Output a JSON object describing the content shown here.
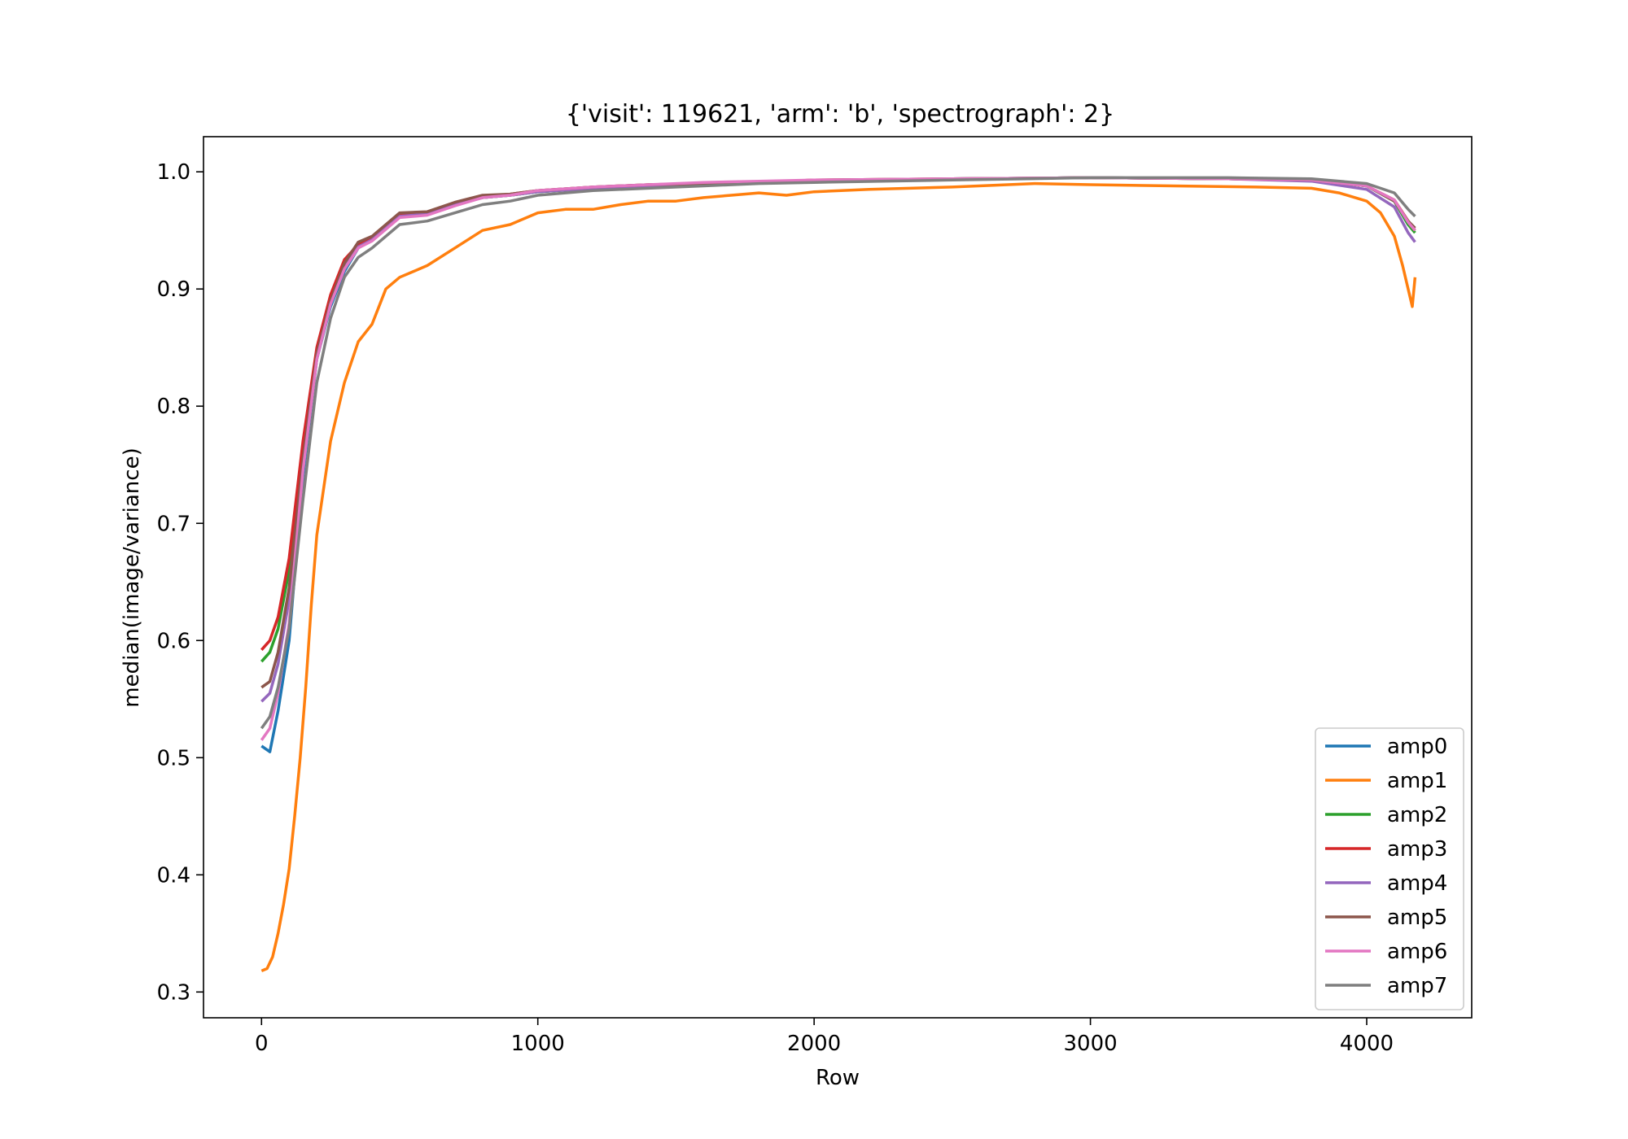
{
  "chart_data": {
    "type": "line",
    "title": "{'visit': 119621, 'arm': 'b', 'spectrograph': 2}",
    "xlabel": "Row",
    "ylabel": "median(image/variance)",
    "xlim": [
      -210,
      4380
    ],
    "ylim": [
      0.278,
      1.03
    ],
    "xticks": [
      0,
      1000,
      2000,
      3000,
      4000
    ],
    "yticks": [
      0.3,
      0.4,
      0.5,
      0.6,
      0.7,
      0.8,
      0.9,
      1.0
    ],
    "xtick_labels": [
      "0",
      "1000",
      "2000",
      "3000",
      "4000"
    ],
    "ytick_labels": [
      "0.3",
      "0.4",
      "0.5",
      "0.6",
      "0.7",
      "0.8",
      "0.9",
      "1.0"
    ],
    "grid": false,
    "legend": "lower-right",
    "series": [
      {
        "name": "amp0",
        "color": "#1f77b4",
        "x": [
          0,
          30,
          60,
          100,
          150,
          200,
          250,
          300,
          350,
          400,
          500,
          600,
          700,
          800,
          900,
          1000,
          1200,
          1400,
          1600,
          1800,
          2000,
          2500,
          3000,
          3500,
          3800,
          4000,
          4100,
          4150,
          4175
        ],
        "y": [
          0.51,
          0.505,
          0.54,
          0.6,
          0.74,
          0.84,
          0.885,
          0.915,
          0.935,
          0.942,
          0.962,
          0.964,
          0.972,
          0.978,
          0.98,
          0.983,
          0.986,
          0.988,
          0.99,
          0.991,
          0.992,
          0.994,
          0.995,
          0.994,
          0.993,
          0.988,
          0.975,
          0.955,
          0.95
        ]
      },
      {
        "name": "amp1",
        "color": "#ff7f0e",
        "x": [
          0,
          20,
          40,
          60,
          80,
          100,
          120,
          140,
          160,
          180,
          200,
          250,
          300,
          350,
          400,
          450,
          500,
          550,
          600,
          700,
          800,
          900,
          1000,
          1100,
          1200,
          1300,
          1400,
          1500,
          1600,
          1700,
          1800,
          1900,
          2000,
          2200,
          2500,
          2800,
          3000,
          3300,
          3600,
          3800,
          3900,
          4000,
          4050,
          4100,
          4130,
          4150,
          4165,
          4175
        ],
        "y": [
          0.318,
          0.32,
          0.33,
          0.35,
          0.375,
          0.405,
          0.45,
          0.5,
          0.56,
          0.63,
          0.69,
          0.77,
          0.82,
          0.855,
          0.87,
          0.9,
          0.91,
          0.915,
          0.92,
          0.935,
          0.95,
          0.955,
          0.965,
          0.968,
          0.968,
          0.972,
          0.975,
          0.975,
          0.978,
          0.98,
          0.982,
          0.98,
          0.983,
          0.985,
          0.987,
          0.99,
          0.989,
          0.988,
          0.987,
          0.986,
          0.982,
          0.975,
          0.965,
          0.945,
          0.92,
          0.9,
          0.885,
          0.91
        ]
      },
      {
        "name": "amp2",
        "color": "#2ca02c",
        "x": [
          0,
          30,
          60,
          100,
          150,
          200,
          250,
          300,
          350,
          400,
          500,
          600,
          700,
          800,
          900,
          1000,
          1200,
          1400,
          1600,
          1800,
          2000,
          2500,
          3000,
          3500,
          3800,
          4000,
          4100,
          4150,
          4175
        ],
        "y": [
          0.582,
          0.59,
          0.61,
          0.66,
          0.76,
          0.845,
          0.89,
          0.92,
          0.937,
          0.943,
          0.962,
          0.964,
          0.972,
          0.978,
          0.98,
          0.983,
          0.986,
          0.988,
          0.99,
          0.991,
          0.992,
          0.994,
          0.995,
          0.994,
          0.993,
          0.988,
          0.975,
          0.955,
          0.948
        ]
      },
      {
        "name": "amp3",
        "color": "#d62728",
        "x": [
          0,
          30,
          60,
          100,
          150,
          200,
          250,
          300,
          350,
          400,
          500,
          600,
          700,
          800,
          900,
          1000,
          1200,
          1400,
          1600,
          1800,
          2000,
          2500,
          3000,
          3500,
          3800,
          4000,
          4100,
          4150,
          4175
        ],
        "y": [
          0.592,
          0.6,
          0.62,
          0.67,
          0.77,
          0.85,
          0.895,
          0.925,
          0.938,
          0.944,
          0.963,
          0.965,
          0.972,
          0.979,
          0.981,
          0.984,
          0.987,
          0.989,
          0.99,
          0.991,
          0.993,
          0.994,
          0.995,
          0.994,
          0.993,
          0.988,
          0.976,
          0.958,
          0.95
        ]
      },
      {
        "name": "amp4",
        "color": "#9467bd",
        "x": [
          0,
          30,
          60,
          100,
          150,
          200,
          250,
          300,
          350,
          400,
          500,
          600,
          700,
          800,
          900,
          1000,
          1200,
          1400,
          1600,
          1800,
          2000,
          2500,
          3000,
          3500,
          3800,
          4000,
          4100,
          4150,
          4175
        ],
        "y": [
          0.548,
          0.555,
          0.58,
          0.635,
          0.75,
          0.84,
          0.888,
          0.918,
          0.936,
          0.942,
          0.962,
          0.964,
          0.972,
          0.978,
          0.98,
          0.983,
          0.986,
          0.988,
          0.99,
          0.991,
          0.992,
          0.994,
          0.995,
          0.994,
          0.992,
          0.985,
          0.97,
          0.948,
          0.94
        ]
      },
      {
        "name": "amp5",
        "color": "#8c564b",
        "x": [
          0,
          30,
          60,
          100,
          150,
          200,
          250,
          300,
          350,
          400,
          500,
          600,
          700,
          800,
          900,
          1000,
          1200,
          1400,
          1600,
          1800,
          2000,
          2500,
          3000,
          3500,
          3800,
          4000,
          4100,
          4150,
          4175
        ],
        "y": [
          0.56,
          0.565,
          0.59,
          0.645,
          0.755,
          0.845,
          0.89,
          0.922,
          0.94,
          0.945,
          0.965,
          0.966,
          0.974,
          0.98,
          0.981,
          0.984,
          0.987,
          0.989,
          0.99,
          0.991,
          0.993,
          0.994,
          0.995,
          0.994,
          0.993,
          0.988,
          0.975,
          0.958,
          0.952
        ]
      },
      {
        "name": "amp6",
        "color": "#e377c2",
        "x": [
          0,
          30,
          60,
          100,
          150,
          200,
          250,
          300,
          350,
          400,
          500,
          600,
          700,
          800,
          900,
          1000,
          1200,
          1400,
          1600,
          1800,
          2000,
          2500,
          3000,
          3500,
          3800,
          4000,
          4100,
          4150,
          4175
        ],
        "y": [
          0.515,
          0.525,
          0.555,
          0.615,
          0.745,
          0.84,
          0.887,
          0.917,
          0.935,
          0.941,
          0.961,
          0.963,
          0.971,
          0.978,
          0.98,
          0.984,
          0.987,
          0.989,
          0.991,
          0.992,
          0.993,
          0.994,
          0.995,
          0.994,
          0.993,
          0.988,
          0.976,
          0.957,
          0.95
        ]
      },
      {
        "name": "amp7",
        "color": "#7f7f7f",
        "x": [
          0,
          30,
          60,
          100,
          150,
          200,
          250,
          300,
          350,
          400,
          500,
          600,
          700,
          800,
          900,
          1000,
          1200,
          1400,
          1600,
          1800,
          2000,
          2500,
          3000,
          3500,
          3800,
          4000,
          4100,
          4150,
          4175
        ],
        "y": [
          0.525,
          0.535,
          0.56,
          0.61,
          0.72,
          0.82,
          0.875,
          0.91,
          0.927,
          0.935,
          0.955,
          0.958,
          0.965,
          0.972,
          0.975,
          0.98,
          0.984,
          0.986,
          0.988,
          0.99,
          0.991,
          0.993,
          0.995,
          0.995,
          0.994,
          0.99,
          0.982,
          0.968,
          0.962
        ]
      }
    ]
  }
}
